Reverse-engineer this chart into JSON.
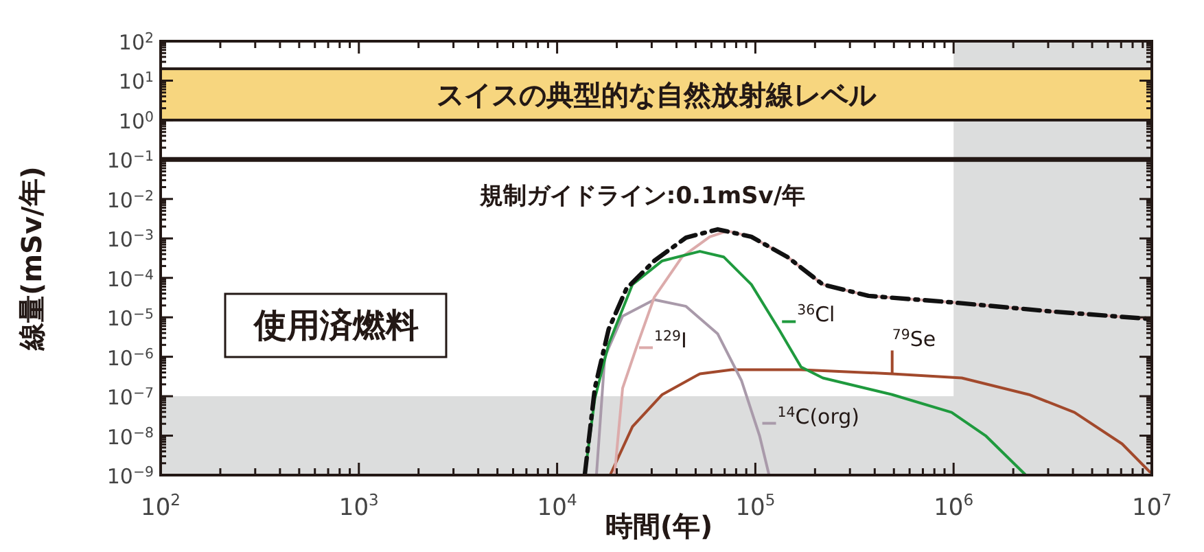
{
  "chart_data": {
    "type": "line",
    "xlabel": "時間(年)",
    "ylabel": "線量(mSv/年)",
    "log": "xy",
    "grid": false,
    "legend": "bottom",
    "xlim": [
      100,
      10000000
    ],
    "ylim": [
      1e-09,
      100
    ],
    "xticks": [
      {
        "value": 100,
        "label": "10$^{2}$"
      },
      {
        "value": 1000,
        "label": "10$^{3}$"
      },
      {
        "value": 10000,
        "label": "10$^{4}$"
      },
      {
        "value": 100000,
        "label": "10$^{5}$"
      },
      {
        "value": 1000000,
        "label": "10$^{6}$"
      },
      {
        "value": 10000000,
        "label": "10$^{7}$"
      }
    ],
    "yticks": [
      {
        "value": 1e-09,
        "label": "10$^{−9}$"
      },
      {
        "value": 1e-08,
        "label": "10$^{−8}$"
      },
      {
        "value": 1e-07,
        "label": "10$^{−7}$"
      },
      {
        "value": 1e-06,
        "label": "10$^{−6}$"
      },
      {
        "value": 1e-05,
        "label": "10$^{−5}$"
      },
      {
        "value": 0.0001,
        "label": "10$^{−4}$"
      },
      {
        "value": 0.001,
        "label": "10$^{−3}$"
      },
      {
        "value": 0.01,
        "label": "10$^{−2}$"
      },
      {
        "value": 0.1,
        "label": "10$^{−1}$"
      },
      {
        "value": 1,
        "label": "10$^{0}$"
      },
      {
        "value": 10,
        "label": "10$^{1}$"
      },
      {
        "value": 100,
        "label": "10$^{2}$"
      }
    ],
    "series": [
      {
        "color": "#111111",
        "line_style": "dashed",
        "x": [
          13800,
          15500,
          18200,
          22400,
          30900,
          44700,
          64600,
          95500,
          145000,
          219000,
          372000,
          977000,
          3160000,
          9770000
        ],
        "values": [
          1.05e-09,
          1.6e-07,
          5e-06,
          5.4e-05,
          0.00027,
          0.00105,
          0.0017,
          0.0011,
          0.00034,
          6.8e-05,
          3.5e-05,
          2.4e-05,
          1.4e-05,
          9.1e-06
        ]
      },
      {
        "name": "$^{36}$Cl",
        "color": "#1f9a3e",
        "line_style": "solid",
        "x": [
          13800,
          15500,
          18200,
          24000,
          33900,
          52500,
          69200,
          95500,
          132000,
          170000,
          219000,
          490000,
          977000,
          1450000,
          2290000
        ],
        "values": [
          1.05e-09,
          8.7e-08,
          2.1e-06,
          6.8e-05,
          0.00027,
          0.00047,
          0.00034,
          6.8e-05,
          4.8e-06,
          5.5e-07,
          2.9e-07,
          1.1e-07,
          3.9e-08,
          1e-08,
          1.05e-09
        ]
      },
      {
        "name": "$^{129}$I",
        "color": "#dcabab",
        "line_style": "solid",
        "x": [
          19500,
          21400,
          25100,
          30900,
          42700,
          58900,
          72400,
          95500,
          145000,
          219000,
          372000,
          977000,
          3160000,
          9770000
        ],
        "values": [
          1.05e-09,
          1.6e-07,
          1.7e-06,
          3.2e-05,
          0.00034,
          0.0011,
          0.00155,
          0.0011,
          0.00034,
          6.8e-05,
          3.5e-05,
          2.4e-05,
          1.4e-05,
          9.1e-06
        ]
      },
      {
        "name": "$^{14}$C(org)",
        "color": "#a99aaa",
        "line_style": "solid",
        "x": [
          15800,
          17400,
          21400,
          30900,
          44700,
          64600,
          85100,
          105000,
          117000
        ],
        "values": [
          1.05e-09,
          1e-06,
          1.07e-05,
          2.8e-05,
          1.9e-05,
          3.8e-06,
          2.5e-07,
          1e-08,
          1.05e-09
        ]
      },
      {
        "name": "$^{79}$Se",
        "color": "#a2492c",
        "line_style": "solid",
        "x": [
          18600,
          24000,
          33900,
          52500,
          75900,
          170000,
          490000,
          1100000,
          2400000,
          4070000,
          7080000,
          9770000
        ],
        "values": [
          1.05e-09,
          1.7e-08,
          1.1e-07,
          3.7e-07,
          4.7e-07,
          4.7e-07,
          3.7e-07,
          2.9e-07,
          1.1e-07,
          3.9e-08,
          6.2e-09,
          1.2e-09
        ]
      }
    ],
    "bands": [
      {
        "axis": "y",
        "from": 1e-09,
        "to": 1e-07,
        "label": null,
        "color": "#dcdddd"
      },
      {
        "axis": "x",
        "from": 1000000,
        "to": 10000000,
        "label": null,
        "color": "#dcdddd"
      },
      {
        "axis": "y",
        "from": 1,
        "to": 20,
        "label": "スイスの典型的な自然放射線レベル",
        "color": "#f7d67f"
      }
    ],
    "ref_lines": [
      {
        "axis": "y",
        "value": 0.1,
        "label": "規制ガイドライン:0.1mSv/年",
        "color": "#231815",
        "line_style": "solid"
      }
    ],
    "annotations": [
      "使用済燃料"
    ]
  }
}
